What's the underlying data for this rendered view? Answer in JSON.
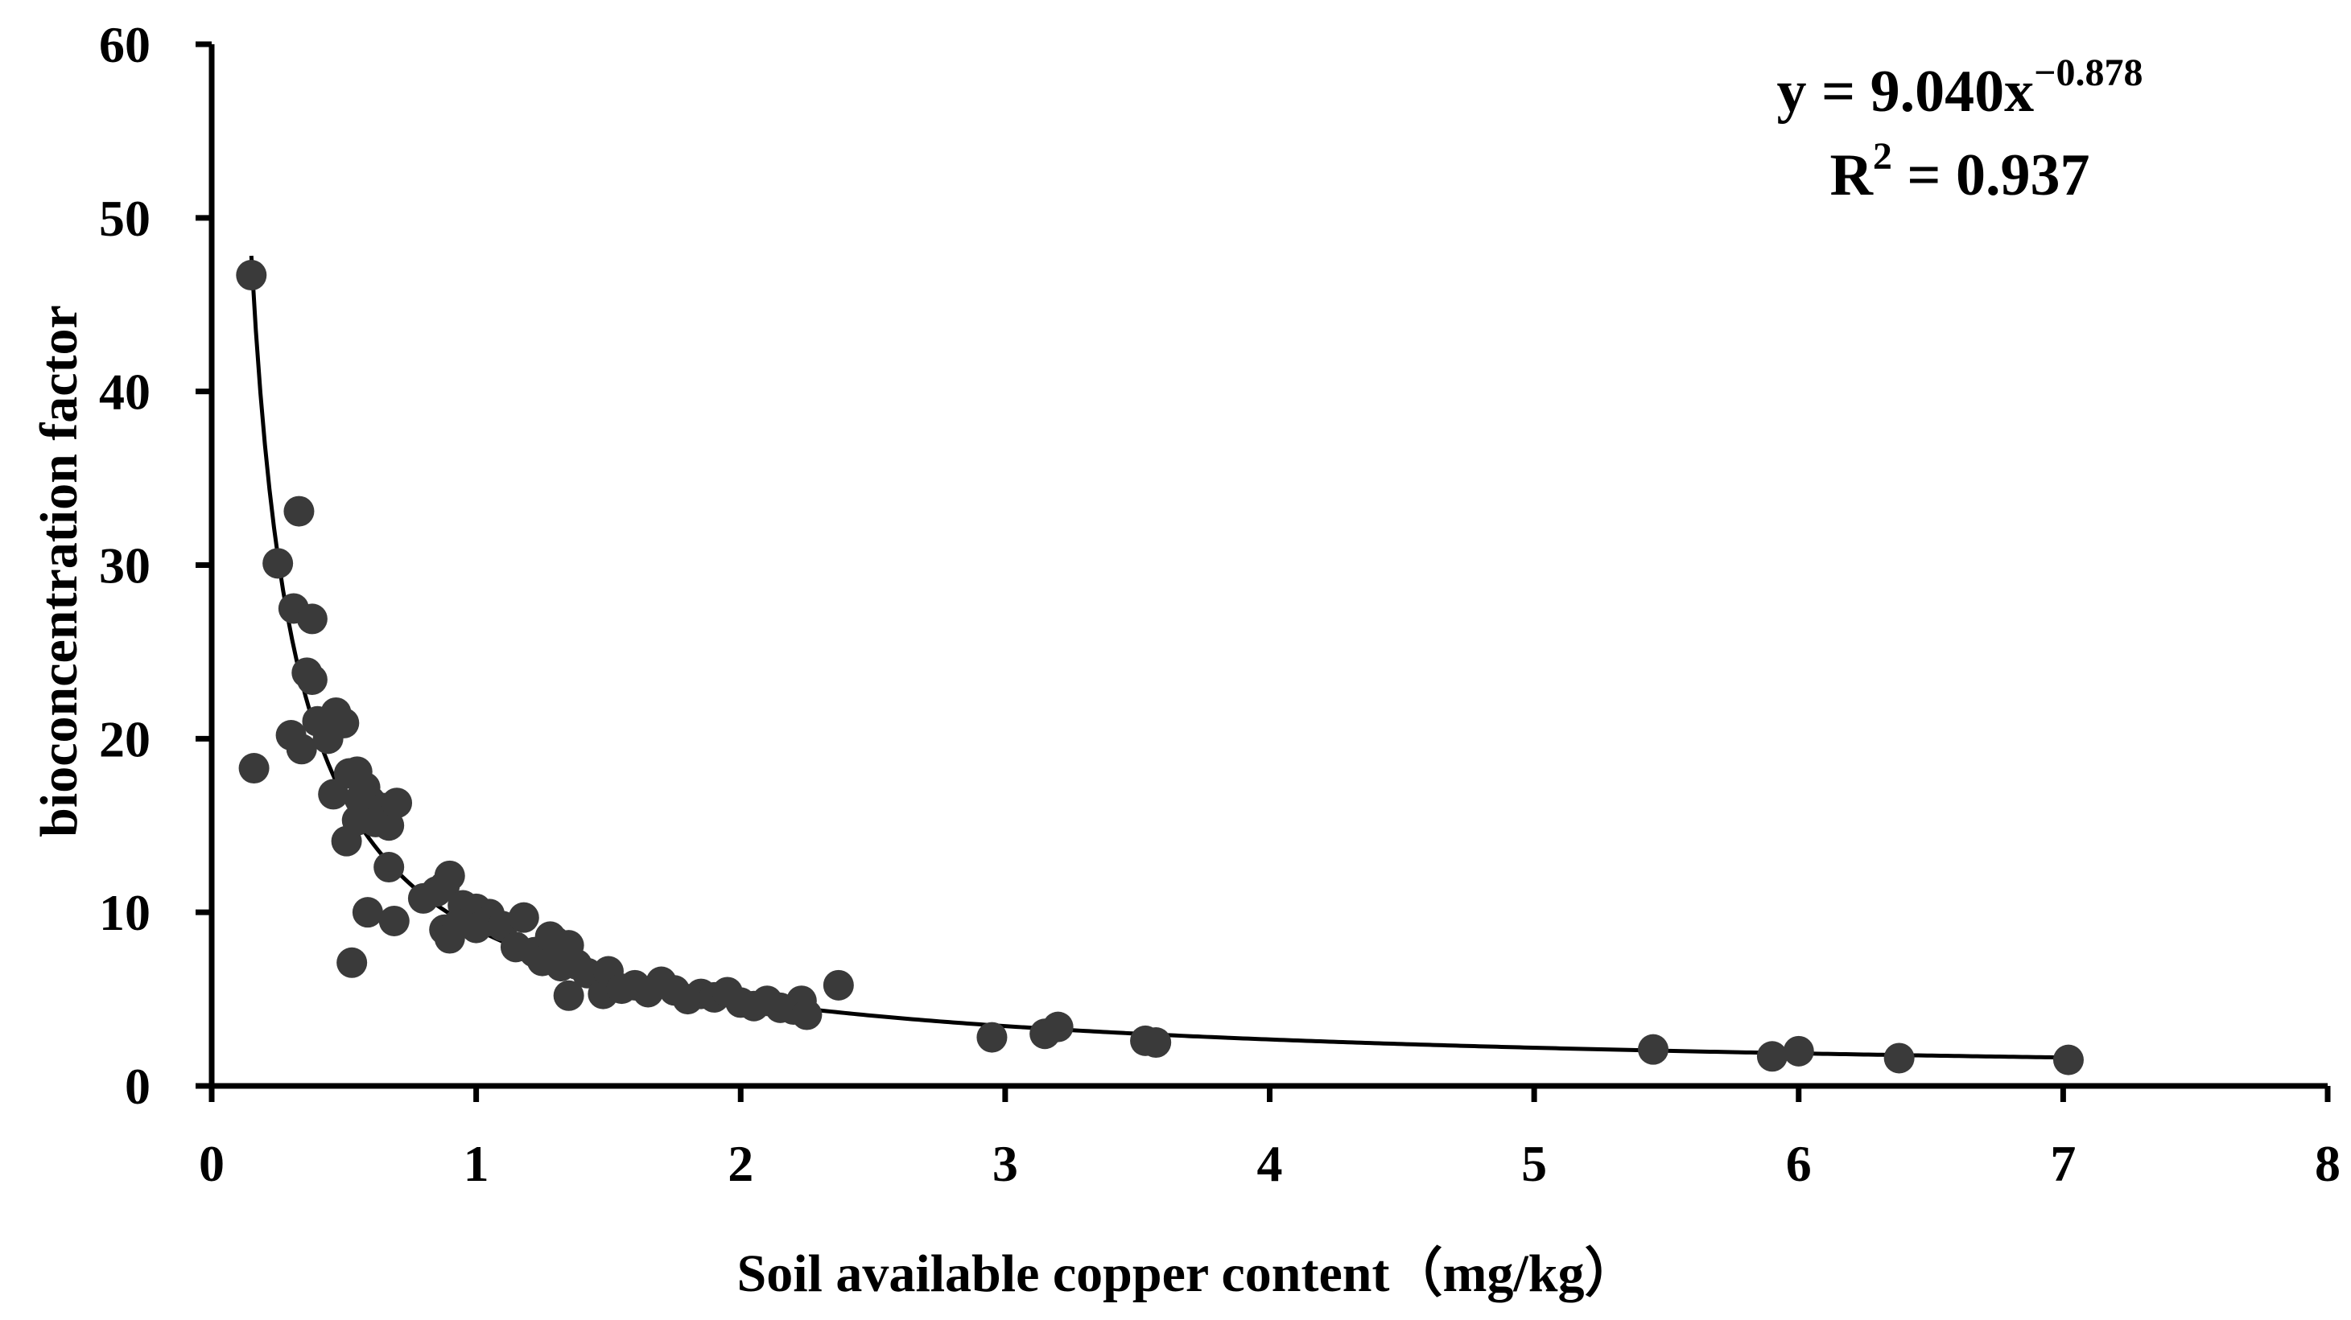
{
  "chart_data": {
    "type": "scatter",
    "xlabel": "Soil available copper content（mg/kg）",
    "ylabel": "bioconcentration factor",
    "xlim": [
      0,
      8
    ],
    "ylim": [
      0,
      60
    ],
    "x_ticks": [
      "0",
      "1",
      "2",
      "3",
      "4",
      "5",
      "6",
      "7",
      "8"
    ],
    "y_ticks": [
      "0",
      "10",
      "20",
      "30",
      "40",
      "50",
      "60"
    ],
    "grid": false,
    "legend": "none",
    "annotation": {
      "equation_prefix": "y = 9.040x",
      "equation_exponent": "−0.878",
      "r2_prefix": "R",
      "r2_exponent": "2",
      "r2_suffix": " = 0.937"
    },
    "fit": {
      "type": "power",
      "a": 9.04,
      "b": -0.878,
      "x_range": [
        0.15,
        7.0
      ]
    },
    "colors": {
      "point": "#3a3a3a",
      "line": "#000000"
    },
    "points": [
      [
        0.15,
        46.7
      ],
      [
        0.16,
        18.3
      ],
      [
        0.25,
        30.1
      ],
      [
        0.31,
        27.5
      ],
      [
        0.33,
        33.1
      ],
      [
        0.38,
        26.9
      ],
      [
        0.3,
        20.2
      ],
      [
        0.34,
        19.4
      ],
      [
        0.36,
        23.8
      ],
      [
        0.38,
        23.4
      ],
      [
        0.4,
        21.0
      ],
      [
        0.44,
        20.0
      ],
      [
        0.47,
        21.5
      ],
      [
        0.5,
        20.9
      ],
      [
        0.46,
        16.8
      ],
      [
        0.52,
        18.0
      ],
      [
        0.55,
        18.1
      ],
      [
        0.56,
        16.5
      ],
      [
        0.58,
        17.2
      ],
      [
        0.6,
        16.4
      ],
      [
        0.62,
        15.2
      ],
      [
        0.65,
        16.0
      ],
      [
        0.67,
        15.0
      ],
      [
        0.7,
        16.3
      ],
      [
        0.51,
        14.1
      ],
      [
        0.55,
        15.3
      ],
      [
        0.53,
        7.1
      ],
      [
        0.59,
        10.0
      ],
      [
        0.67,
        12.6
      ],
      [
        0.69,
        9.5
      ],
      [
        0.8,
        10.8
      ],
      [
        0.85,
        11.2
      ],
      [
        0.88,
        11.5
      ],
      [
        0.9,
        12.1
      ],
      [
        0.95,
        10.4
      ],
      [
        1.0,
        10.2
      ],
      [
        1.05,
        9.9
      ],
      [
        0.88,
        9.0
      ],
      [
        0.9,
        8.5
      ],
      [
        0.93,
        9.3
      ],
      [
        1.0,
        9.1
      ],
      [
        1.05,
        9.5
      ],
      [
        1.1,
        9.2
      ],
      [
        1.15,
        8.0
      ],
      [
        1.18,
        9.7
      ],
      [
        1.22,
        7.7
      ],
      [
        1.25,
        7.2
      ],
      [
        1.28,
        8.6
      ],
      [
        1.3,
        8.3
      ],
      [
        1.35,
        8.1
      ],
      [
        1.32,
        6.9
      ],
      [
        1.38,
        7.0
      ],
      [
        1.35,
        5.2
      ],
      [
        1.42,
        6.5
      ],
      [
        1.48,
        5.3
      ],
      [
        1.5,
        6.6
      ],
      [
        1.55,
        5.6
      ],
      [
        1.6,
        5.8
      ],
      [
        1.65,
        5.4
      ],
      [
        1.7,
        6.0
      ],
      [
        1.75,
        5.5
      ],
      [
        1.8,
        5.0
      ],
      [
        1.85,
        5.3
      ],
      [
        1.9,
        5.1
      ],
      [
        1.95,
        5.4
      ],
      [
        2.0,
        4.8
      ],
      [
        2.05,
        4.6
      ],
      [
        2.1,
        4.9
      ],
      [
        2.15,
        4.5
      ],
      [
        2.2,
        4.4
      ],
      [
        2.23,
        4.9
      ],
      [
        2.25,
        4.1
      ],
      [
        2.37,
        5.8
      ],
      [
        2.95,
        2.8
      ],
      [
        3.15,
        3.0
      ],
      [
        3.2,
        3.4
      ],
      [
        3.53,
        2.6
      ],
      [
        3.57,
        2.5
      ],
      [
        5.45,
        2.1
      ],
      [
        5.9,
        1.7
      ],
      [
        6.0,
        2.0
      ],
      [
        6.38,
        1.6
      ],
      [
        7.02,
        1.5
      ]
    ]
  }
}
